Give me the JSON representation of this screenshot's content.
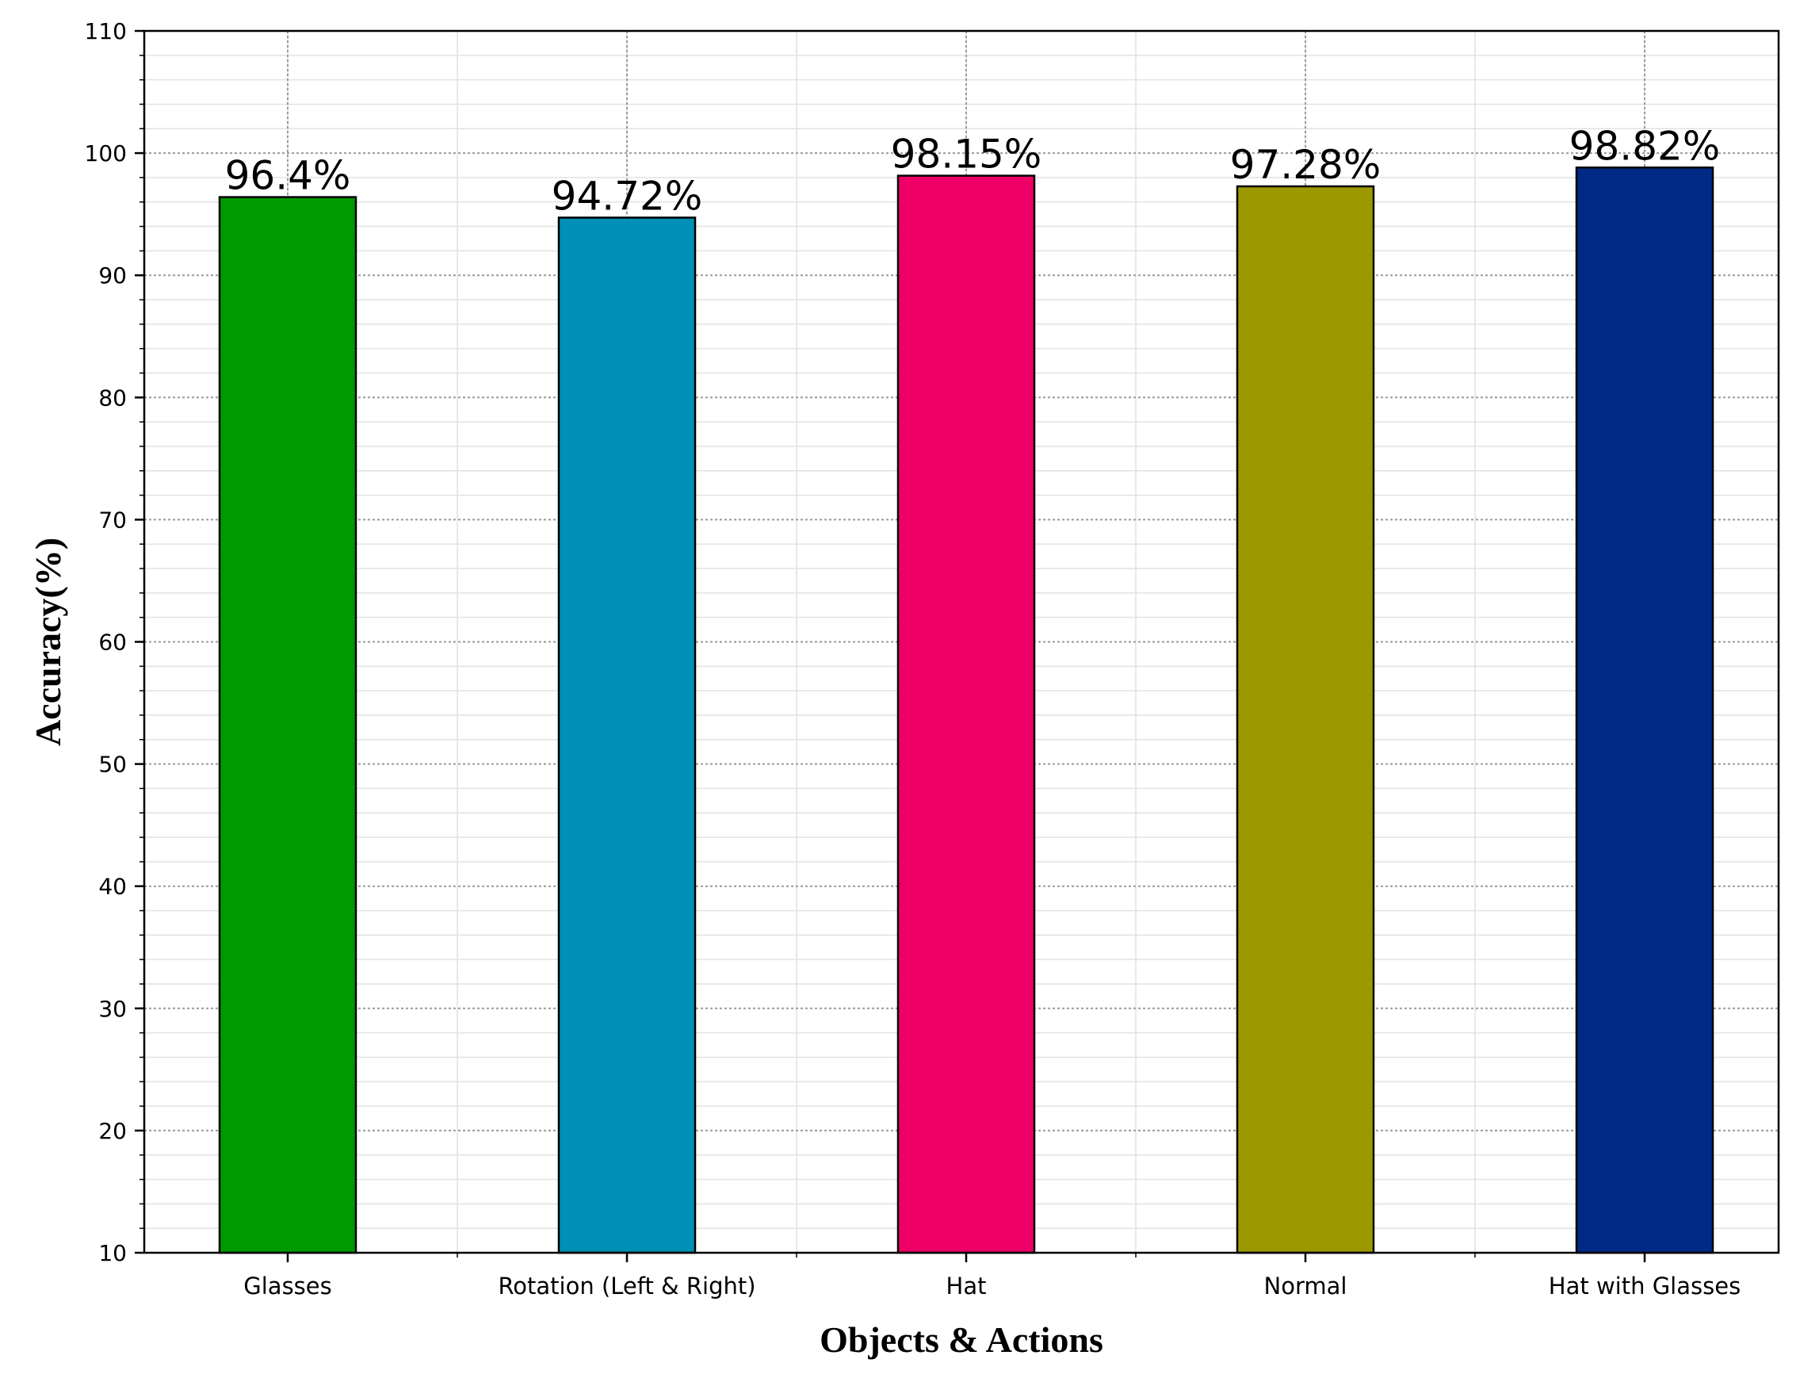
{
  "chart_data": {
    "type": "bar",
    "title": "",
    "xlabel": "Objects & Actions",
    "ylabel": "Accuracy(%)",
    "categories": [
      "Glasses",
      "Rotation (Left & Right)",
      "Hat",
      "Normal",
      "Hat with Glasses"
    ],
    "values": [
      96.4,
      94.72,
      98.15,
      97.28,
      98.82
    ],
    "value_labels": [
      "96.4%",
      "94.72%",
      "98.15%",
      "97.28%",
      "98.82%"
    ],
    "colors": [
      "#009900",
      "#008FB5",
      "#EE0066",
      "#9C9900",
      "#002A86"
    ],
    "ylim": [
      10,
      110
    ],
    "yticks": [
      "10",
      "20",
      "30",
      "40",
      "50",
      "60",
      "70",
      "80",
      "90",
      "100",
      "110"
    ],
    "grid": true
  }
}
